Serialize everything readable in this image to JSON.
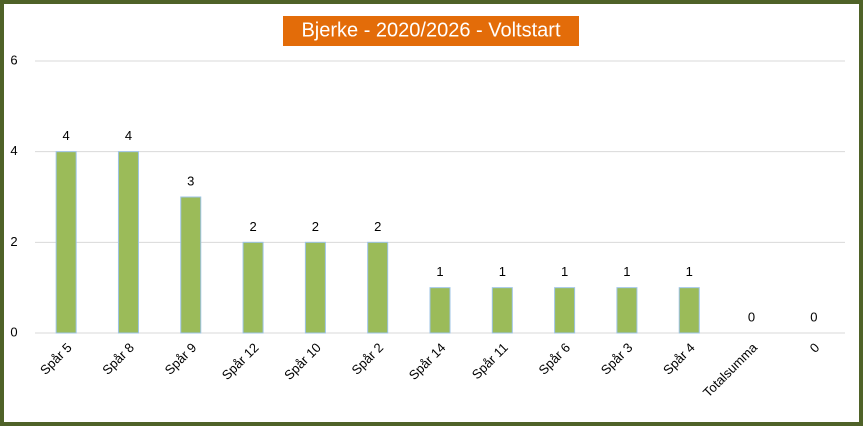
{
  "chart_data": {
    "type": "bar",
    "title": "Bjerke - 2020/2026 - Voltstart",
    "categories": [
      "Spår 5",
      "Spår 8",
      "Spår 9",
      "Spår 12",
      "Spår 10",
      "Spår 2",
      "Spår 14",
      "Spår 11",
      "Spår 6",
      "Spår 3",
      "Spår 4",
      "Totalsumma",
      "0"
    ],
    "values": [
      4,
      4,
      3,
      2,
      2,
      2,
      1,
      1,
      1,
      1,
      1,
      0,
      0
    ],
    "color": "#9bbb59",
    "ylim": [
      0,
      6
    ],
    "yticks": [
      0,
      2,
      4,
      6
    ],
    "grid": true
  }
}
